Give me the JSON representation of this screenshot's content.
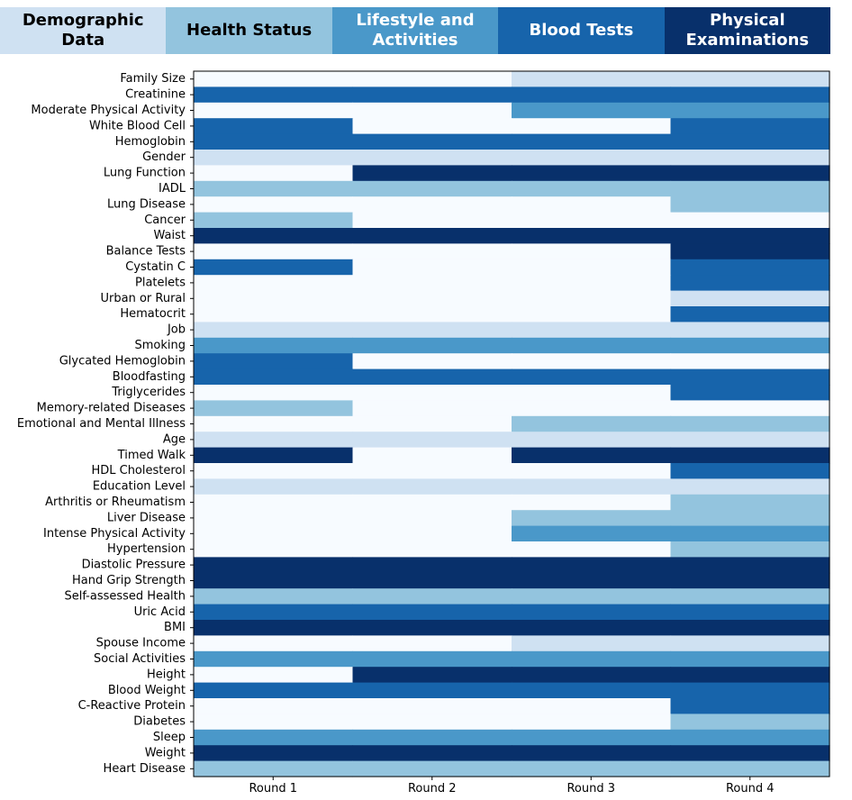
{
  "legend": [
    {
      "label": "Demographic\nData",
      "color": "#cfe1f2",
      "text_color": "#000000"
    },
    {
      "label": "Health Status",
      "color": "#93c4de",
      "text_color": "#000000"
    },
    {
      "label": "Lifestyle and\nActivities",
      "color": "#4a98c9",
      "text_color": "#ffffff"
    },
    {
      "label": "Blood Tests",
      "color": "#1764ab",
      "text_color": "#ffffff"
    },
    {
      "label": "Physical\nExaminations",
      "color": "#08306b",
      "text_color": "#ffffff"
    }
  ],
  "chart_data": {
    "type": "heatmap",
    "title": "",
    "xlabel": "",
    "ylabel": "",
    "categories": [
      "Round 1",
      "Round 2",
      "Round 3",
      "Round 4"
    ],
    "absent_color": "#f7fbff",
    "category_colors": {
      "Demographic Data": "#cfe1f2",
      "Health Status": "#93c4de",
      "Lifestyle and Activities": "#4a98c9",
      "Blood Tests": "#1764ab",
      "Physical Examinations": "#08306b"
    },
    "rows": [
      {
        "label": "Family Size",
        "category": "Demographic Data",
        "present": [
          0,
          0,
          1,
          1
        ]
      },
      {
        "label": "Creatinine",
        "category": "Blood Tests",
        "present": [
          1,
          1,
          1,
          1
        ]
      },
      {
        "label": "Moderate Physical Activity",
        "category": "Lifestyle and Activities",
        "present": [
          0,
          0,
          1,
          1
        ]
      },
      {
        "label": "White Blood Cell",
        "category": "Blood Tests",
        "present": [
          1,
          0,
          0,
          1
        ]
      },
      {
        "label": "Hemoglobin",
        "category": "Blood Tests",
        "present": [
          1,
          1,
          1,
          1
        ]
      },
      {
        "label": "Gender",
        "category": "Demographic Data",
        "present": [
          1,
          1,
          1,
          1
        ]
      },
      {
        "label": "Lung Function",
        "category": "Physical Examinations",
        "present": [
          0,
          1,
          1,
          1
        ]
      },
      {
        "label": "IADL",
        "category": "Health Status",
        "present": [
          1,
          1,
          1,
          1
        ]
      },
      {
        "label": "Lung Disease",
        "category": "Health Status",
        "present": [
          0,
          0,
          0,
          1
        ]
      },
      {
        "label": "Cancer",
        "category": "Health Status",
        "present": [
          1,
          0,
          0,
          0
        ]
      },
      {
        "label": "Waist",
        "category": "Physical Examinations",
        "present": [
          1,
          1,
          1,
          1
        ]
      },
      {
        "label": "Balance Tests",
        "category": "Physical Examinations",
        "present": [
          0,
          0,
          0,
          1
        ]
      },
      {
        "label": "Cystatin C",
        "category": "Blood Tests",
        "present": [
          1,
          0,
          0,
          1
        ]
      },
      {
        "label": "Platelets",
        "category": "Blood Tests",
        "present": [
          0,
          0,
          0,
          1
        ]
      },
      {
        "label": "Urban or Rural",
        "category": "Demographic Data",
        "present": [
          0,
          0,
          0,
          1
        ]
      },
      {
        "label": "Hematocrit",
        "category": "Blood Tests",
        "present": [
          0,
          0,
          0,
          1
        ]
      },
      {
        "label": "Job",
        "category": "Demographic Data",
        "present": [
          1,
          1,
          1,
          1
        ]
      },
      {
        "label": "Smoking",
        "category": "Lifestyle and Activities",
        "present": [
          1,
          1,
          1,
          1
        ]
      },
      {
        "label": "Glycated Hemoglobin",
        "category": "Blood Tests",
        "present": [
          1,
          0,
          0,
          0
        ]
      },
      {
        "label": "Bloodfasting",
        "category": "Blood Tests",
        "present": [
          1,
          1,
          1,
          1
        ]
      },
      {
        "label": "Triglycerides",
        "category": "Blood Tests",
        "present": [
          0,
          0,
          0,
          1
        ]
      },
      {
        "label": "Memory-related Diseases",
        "category": "Health Status",
        "present": [
          1,
          0,
          0,
          0
        ]
      },
      {
        "label": "Emotional and Mental Illness",
        "category": "Health Status",
        "present": [
          0,
          0,
          1,
          1
        ]
      },
      {
        "label": "Age",
        "category": "Demographic Data",
        "present": [
          1,
          1,
          1,
          1
        ]
      },
      {
        "label": "Timed Walk",
        "category": "Physical Examinations",
        "present": [
          1,
          0,
          1,
          1
        ]
      },
      {
        "label": "HDL Cholesterol",
        "category": "Blood Tests",
        "present": [
          0,
          0,
          0,
          1
        ]
      },
      {
        "label": "Education Level",
        "category": "Demographic Data",
        "present": [
          1,
          1,
          1,
          1
        ]
      },
      {
        "label": "Arthritis or Rheumatism",
        "category": "Health Status",
        "present": [
          0,
          0,
          0,
          1
        ]
      },
      {
        "label": "Liver Disease",
        "category": "Health Status",
        "present": [
          0,
          0,
          1,
          1
        ]
      },
      {
        "label": "Intense Physical Activity",
        "category": "Lifestyle and Activities",
        "present": [
          0,
          0,
          1,
          1
        ]
      },
      {
        "label": "Hypertension",
        "category": "Health Status",
        "present": [
          0,
          0,
          0,
          1
        ]
      },
      {
        "label": "Diastolic Pressure",
        "category": "Physical Examinations",
        "present": [
          1,
          1,
          1,
          1
        ]
      },
      {
        "label": "Hand Grip Strength",
        "category": "Physical Examinations",
        "present": [
          1,
          1,
          1,
          1
        ]
      },
      {
        "label": "Self-assessed Health",
        "category": "Health Status",
        "present": [
          1,
          1,
          1,
          1
        ]
      },
      {
        "label": "Uric Acid",
        "category": "Blood Tests",
        "present": [
          1,
          1,
          1,
          1
        ]
      },
      {
        "label": "BMI",
        "category": "Physical Examinations",
        "present": [
          1,
          1,
          1,
          1
        ]
      },
      {
        "label": "Spouse Income",
        "category": "Demographic Data",
        "present": [
          0,
          0,
          1,
          1
        ]
      },
      {
        "label": "Social Activities",
        "category": "Lifestyle and Activities",
        "present": [
          1,
          1,
          1,
          1
        ]
      },
      {
        "label": "Height",
        "category": "Physical Examinations",
        "present": [
          0,
          1,
          1,
          1
        ]
      },
      {
        "label": "Blood Weight",
        "category": "Blood Tests",
        "present": [
          1,
          1,
          1,
          1
        ]
      },
      {
        "label": "C-Reactive Protein",
        "category": "Blood Tests",
        "present": [
          0,
          0,
          0,
          1
        ]
      },
      {
        "label": "Diabetes",
        "category": "Health Status",
        "present": [
          0,
          0,
          0,
          1
        ]
      },
      {
        "label": "Sleep",
        "category": "Lifestyle and Activities",
        "present": [
          1,
          1,
          1,
          1
        ]
      },
      {
        "label": "Weight",
        "category": "Physical Examinations",
        "present": [
          1,
          1,
          1,
          1
        ]
      },
      {
        "label": "Heart Disease",
        "category": "Health Status",
        "present": [
          1,
          1,
          1,
          1
        ]
      }
    ]
  }
}
